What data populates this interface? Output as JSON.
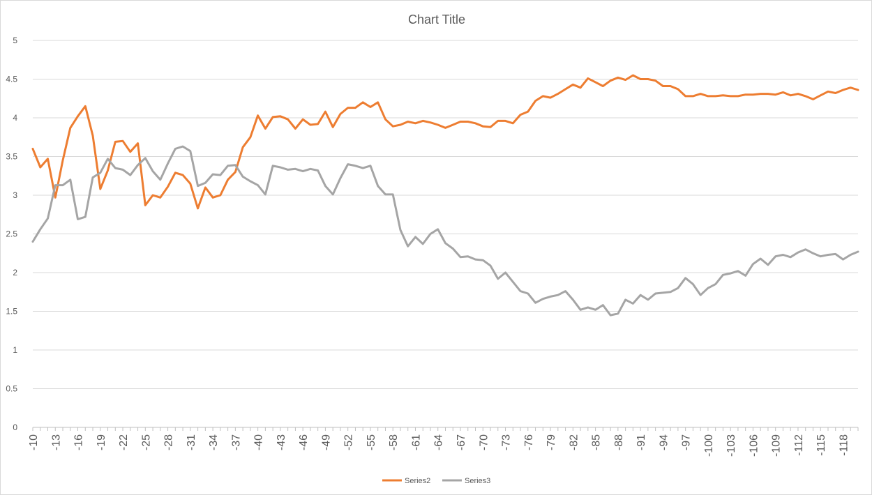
{
  "chart_data": {
    "type": "line",
    "title": "Chart Title",
    "xlabel": "",
    "ylabel": "",
    "ylim": [
      0,
      5
    ],
    "yticks": [
      "0",
      "0.5",
      "1",
      "1.5",
      "2",
      "2.5",
      "3",
      "3.5",
      "4",
      "4.5",
      "5"
    ],
    "grid": "horizontal",
    "legend_position": "bottom",
    "x_start": -10,
    "x_step": -1,
    "x_tick_every": 3,
    "series": [
      {
        "name": "Series2",
        "color": "#ED7D31",
        "values": [
          3.6,
          3.36,
          3.47,
          2.97,
          3.45,
          3.87,
          4.02,
          4.15,
          3.77,
          3.08,
          3.32,
          3.69,
          3.7,
          3.56,
          3.67,
          2.87,
          3.0,
          2.97,
          3.11,
          3.29,
          3.26,
          3.15,
          2.83,
          3.1,
          2.97,
          3.0,
          3.2,
          3.3,
          3.62,
          3.75,
          4.03,
          3.86,
          4.01,
          4.02,
          3.98,
          3.86,
          3.98,
          3.91,
          3.92,
          4.08,
          3.88,
          4.05,
          4.13,
          4.13,
          4.2,
          4.14,
          4.2,
          3.98,
          3.89,
          3.91,
          3.95,
          3.93,
          3.96,
          3.94,
          3.91,
          3.87,
          3.91,
          3.95,
          3.95,
          3.93,
          3.89,
          3.88,
          3.96,
          3.96,
          3.93,
          4.04,
          4.08,
          4.22,
          4.28,
          4.26,
          4.31,
          4.37,
          4.43,
          4.39,
          4.51,
          4.46,
          4.41,
          4.48,
          4.52,
          4.49,
          4.55,
          4.5,
          4.5,
          4.48,
          4.41,
          4.41,
          4.37,
          4.28,
          4.28,
          4.31,
          4.28,
          4.28,
          4.29,
          4.28,
          4.28,
          4.3,
          4.3,
          4.31,
          4.31,
          4.3,
          4.33,
          4.29,
          4.31,
          4.28,
          4.24,
          4.29,
          4.34,
          4.32,
          4.36,
          4.39,
          4.36
        ]
      },
      {
        "name": "Series3",
        "color": "#A5A5A5",
        "values": [
          2.4,
          2.56,
          2.7,
          3.13,
          3.13,
          3.2,
          2.69,
          2.72,
          3.23,
          3.29,
          3.47,
          3.35,
          3.33,
          3.26,
          3.39,
          3.48,
          3.31,
          3.2,
          3.41,
          3.6,
          3.63,
          3.57,
          3.12,
          3.16,
          3.27,
          3.26,
          3.38,
          3.39,
          3.24,
          3.18,
          3.13,
          3.01,
          3.38,
          3.36,
          3.33,
          3.34,
          3.31,
          3.34,
          3.32,
          3.12,
          3.01,
          3.22,
          3.4,
          3.38,
          3.35,
          3.38,
          3.12,
          3.01,
          3.01,
          2.55,
          2.34,
          2.46,
          2.37,
          2.5,
          2.56,
          2.38,
          2.31,
          2.2,
          2.21,
          2.17,
          2.16,
          2.09,
          1.92,
          2.0,
          1.88,
          1.76,
          1.73,
          1.61,
          1.66,
          1.69,
          1.71,
          1.76,
          1.65,
          1.52,
          1.55,
          1.52,
          1.58,
          1.45,
          1.47,
          1.65,
          1.6,
          1.71,
          1.65,
          1.73,
          1.74,
          1.75,
          1.8,
          1.93,
          1.85,
          1.71,
          1.8,
          1.85,
          1.97,
          1.99,
          2.02,
          1.96,
          2.11,
          2.18,
          2.1,
          2.21,
          2.23,
          2.2,
          2.26,
          2.3,
          2.25,
          2.21,
          2.23,
          2.24,
          2.17,
          2.23,
          2.27
        ]
      }
    ]
  }
}
